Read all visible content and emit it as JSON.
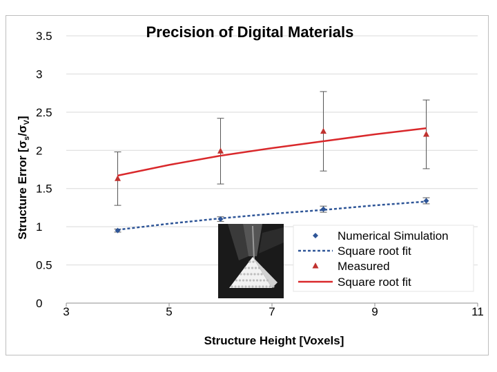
{
  "chart_data": {
    "type": "line",
    "title": "Precision of Digital Materials",
    "xlabel": "Structure Height [Voxels]",
    "ylabel": "Structure Error [σs/σv]",
    "ylabel_parts": {
      "prefix": "Structure Error [",
      "sigma1": "σ",
      "sub1": "s",
      "slash": "/",
      "sigma2": "σ",
      "sub2": "V",
      "suffix": "]"
    },
    "xlim": [
      3,
      11
    ],
    "ylim": [
      0,
      3.5
    ],
    "x_ticks": [
      "3",
      "5",
      "7",
      "9",
      "11"
    ],
    "x_tick_values": [
      3,
      5,
      7,
      9,
      11
    ],
    "y_ticks": [
      "0",
      "0.5",
      "1",
      "1.5",
      "2",
      "2.5",
      "3",
      "3.5"
    ],
    "y_tick_values": [
      0,
      0.5,
      1,
      1.5,
      2,
      2.5,
      3,
      3.5
    ],
    "grid": true,
    "legend_position": "bottom-right",
    "series": [
      {
        "name": "Numerical Simulation",
        "kind": "points",
        "marker": "diamond",
        "color": "#2e5597",
        "x": [
          4,
          6,
          8,
          10
        ],
        "y": [
          0.95,
          1.1,
          1.23,
          1.34
        ],
        "err": [
          0.02,
          0.03,
          0.04,
          0.04
        ]
      },
      {
        "name": "Square root fit",
        "kind": "line",
        "style": "dashed",
        "color": "#2e5597",
        "x": [
          4,
          5,
          6,
          7,
          8,
          9,
          10
        ],
        "y": [
          0.96,
          1.04,
          1.11,
          1.17,
          1.22,
          1.28,
          1.33
        ]
      },
      {
        "name": "Measured",
        "kind": "points",
        "marker": "triangle",
        "color": "#c0322f",
        "x": [
          4,
          6,
          8,
          10
        ],
        "y": [
          1.63,
          1.99,
          2.25,
          2.21
        ],
        "err": [
          0.35,
          0.43,
          0.52,
          0.45
        ]
      },
      {
        "name": "Square root fit",
        "kind": "line",
        "style": "solid",
        "color": "#d9282b",
        "x": [
          4,
          5,
          6,
          7,
          8,
          9,
          10
        ],
        "y": [
          1.67,
          1.81,
          1.93,
          2.03,
          2.12,
          2.21,
          2.29
        ]
      }
    ]
  },
  "inset_photo": {
    "icon": "3d-printed-pyramid-photo",
    "bg_color": "#1a1a1a",
    "object_color": "#f2f2f2"
  }
}
